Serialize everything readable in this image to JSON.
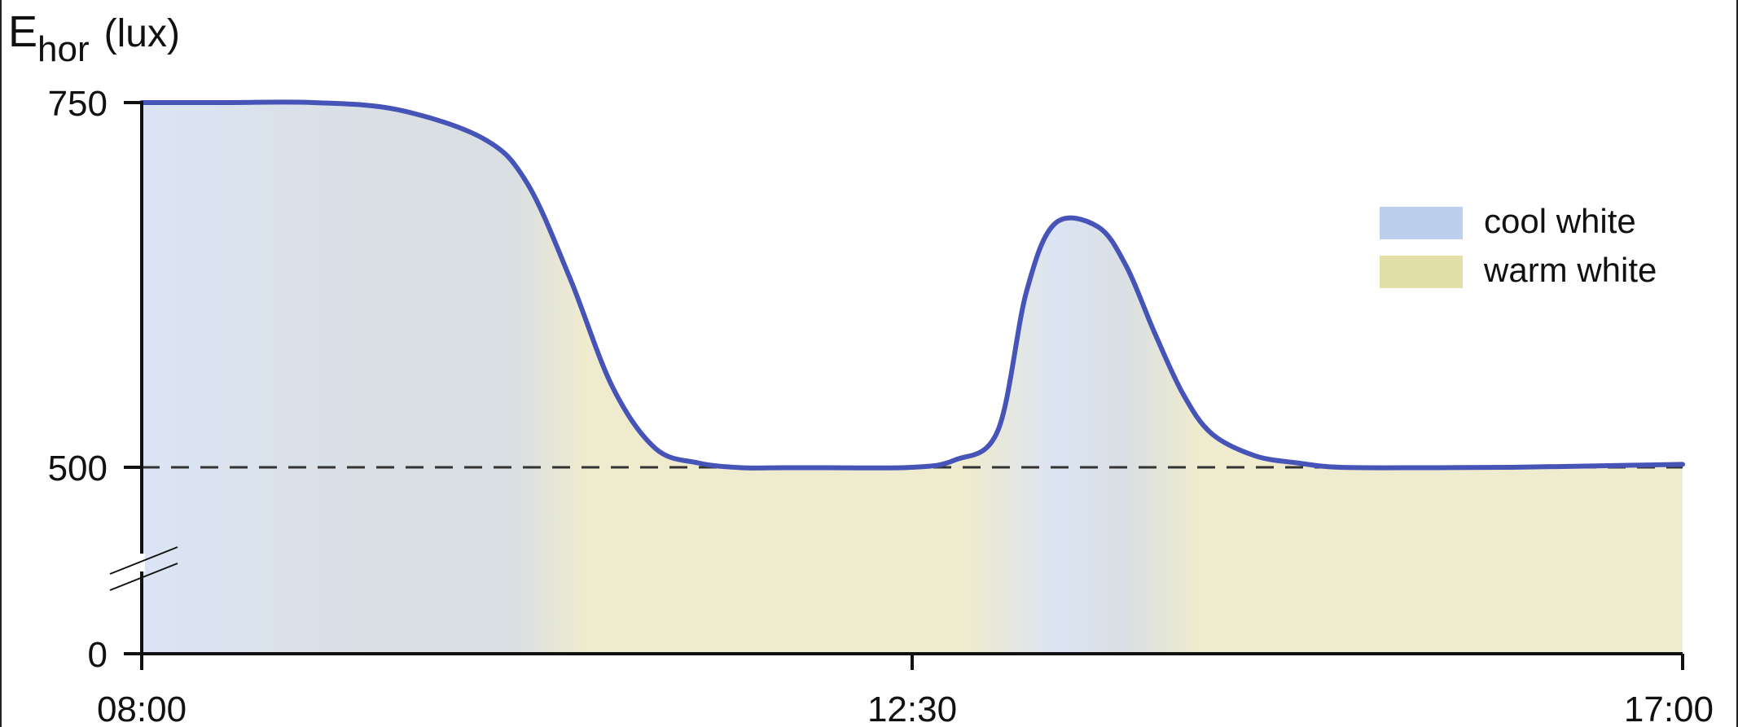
{
  "chart_data": {
    "type": "area",
    "ylabel": {
      "symbol": "E",
      "subscript": "hor",
      "unit": "(lux)"
    },
    "xlabel": "",
    "title": "",
    "x_ticks": [
      "08:00",
      "12:30",
      "17:00"
    ],
    "y_ticks": [
      "0",
      "500",
      "750"
    ],
    "x_range": [
      "08:00",
      "17:00"
    ],
    "y_axis_break": true,
    "reference_line": {
      "y": 500,
      "style": "dashed"
    },
    "series": [
      {
        "x": [
          "08:00",
          "08:30",
          "09:00",
          "09:30",
          "10:00",
          "10:15",
          "10:30",
          "10:45",
          "11:00",
          "11:15",
          "11:30",
          "11:45",
          "12:00",
          "12:30",
          "12:45",
          "13:00",
          "13:10",
          "13:20",
          "13:35",
          "13:45",
          "13:55",
          "14:05",
          "14:15",
          "14:30",
          "14:45",
          "15:00",
          "15:30",
          "16:00",
          "16:30",
          "17:00"
        ],
        "y": [
          750,
          750,
          750,
          745,
          725,
          695,
          630,
          555,
          513,
          503,
          499,
          499,
          499,
          500,
          505,
          525,
          620,
          667,
          665,
          638,
          592,
          550,
          523,
          508,
          503,
          500,
          499,
          500,
          501,
          502
        ]
      }
    ],
    "area_color_segments": [
      {
        "from": "08:00",
        "to": "10:15",
        "fill": "cool white"
      },
      {
        "from": "10:15",
        "to": "13:00",
        "fill": "warm white"
      },
      {
        "from": "13:00",
        "to": "14:00",
        "fill": "cool white"
      },
      {
        "from": "14:00",
        "to": "17:00",
        "fill": "warm white"
      }
    ],
    "legend": {
      "position": "top-right",
      "entries": [
        {
          "label": "cool white",
          "color": "#bcd0ee"
        },
        {
          "label": "warm white",
          "color": "#e2dfa8"
        }
      ]
    },
    "colors": {
      "line": "#4654b8",
      "cool_fill": "#dbe4f4",
      "warm_fill": "#efebcf",
      "mid_fill": "#d9dfe3"
    }
  }
}
